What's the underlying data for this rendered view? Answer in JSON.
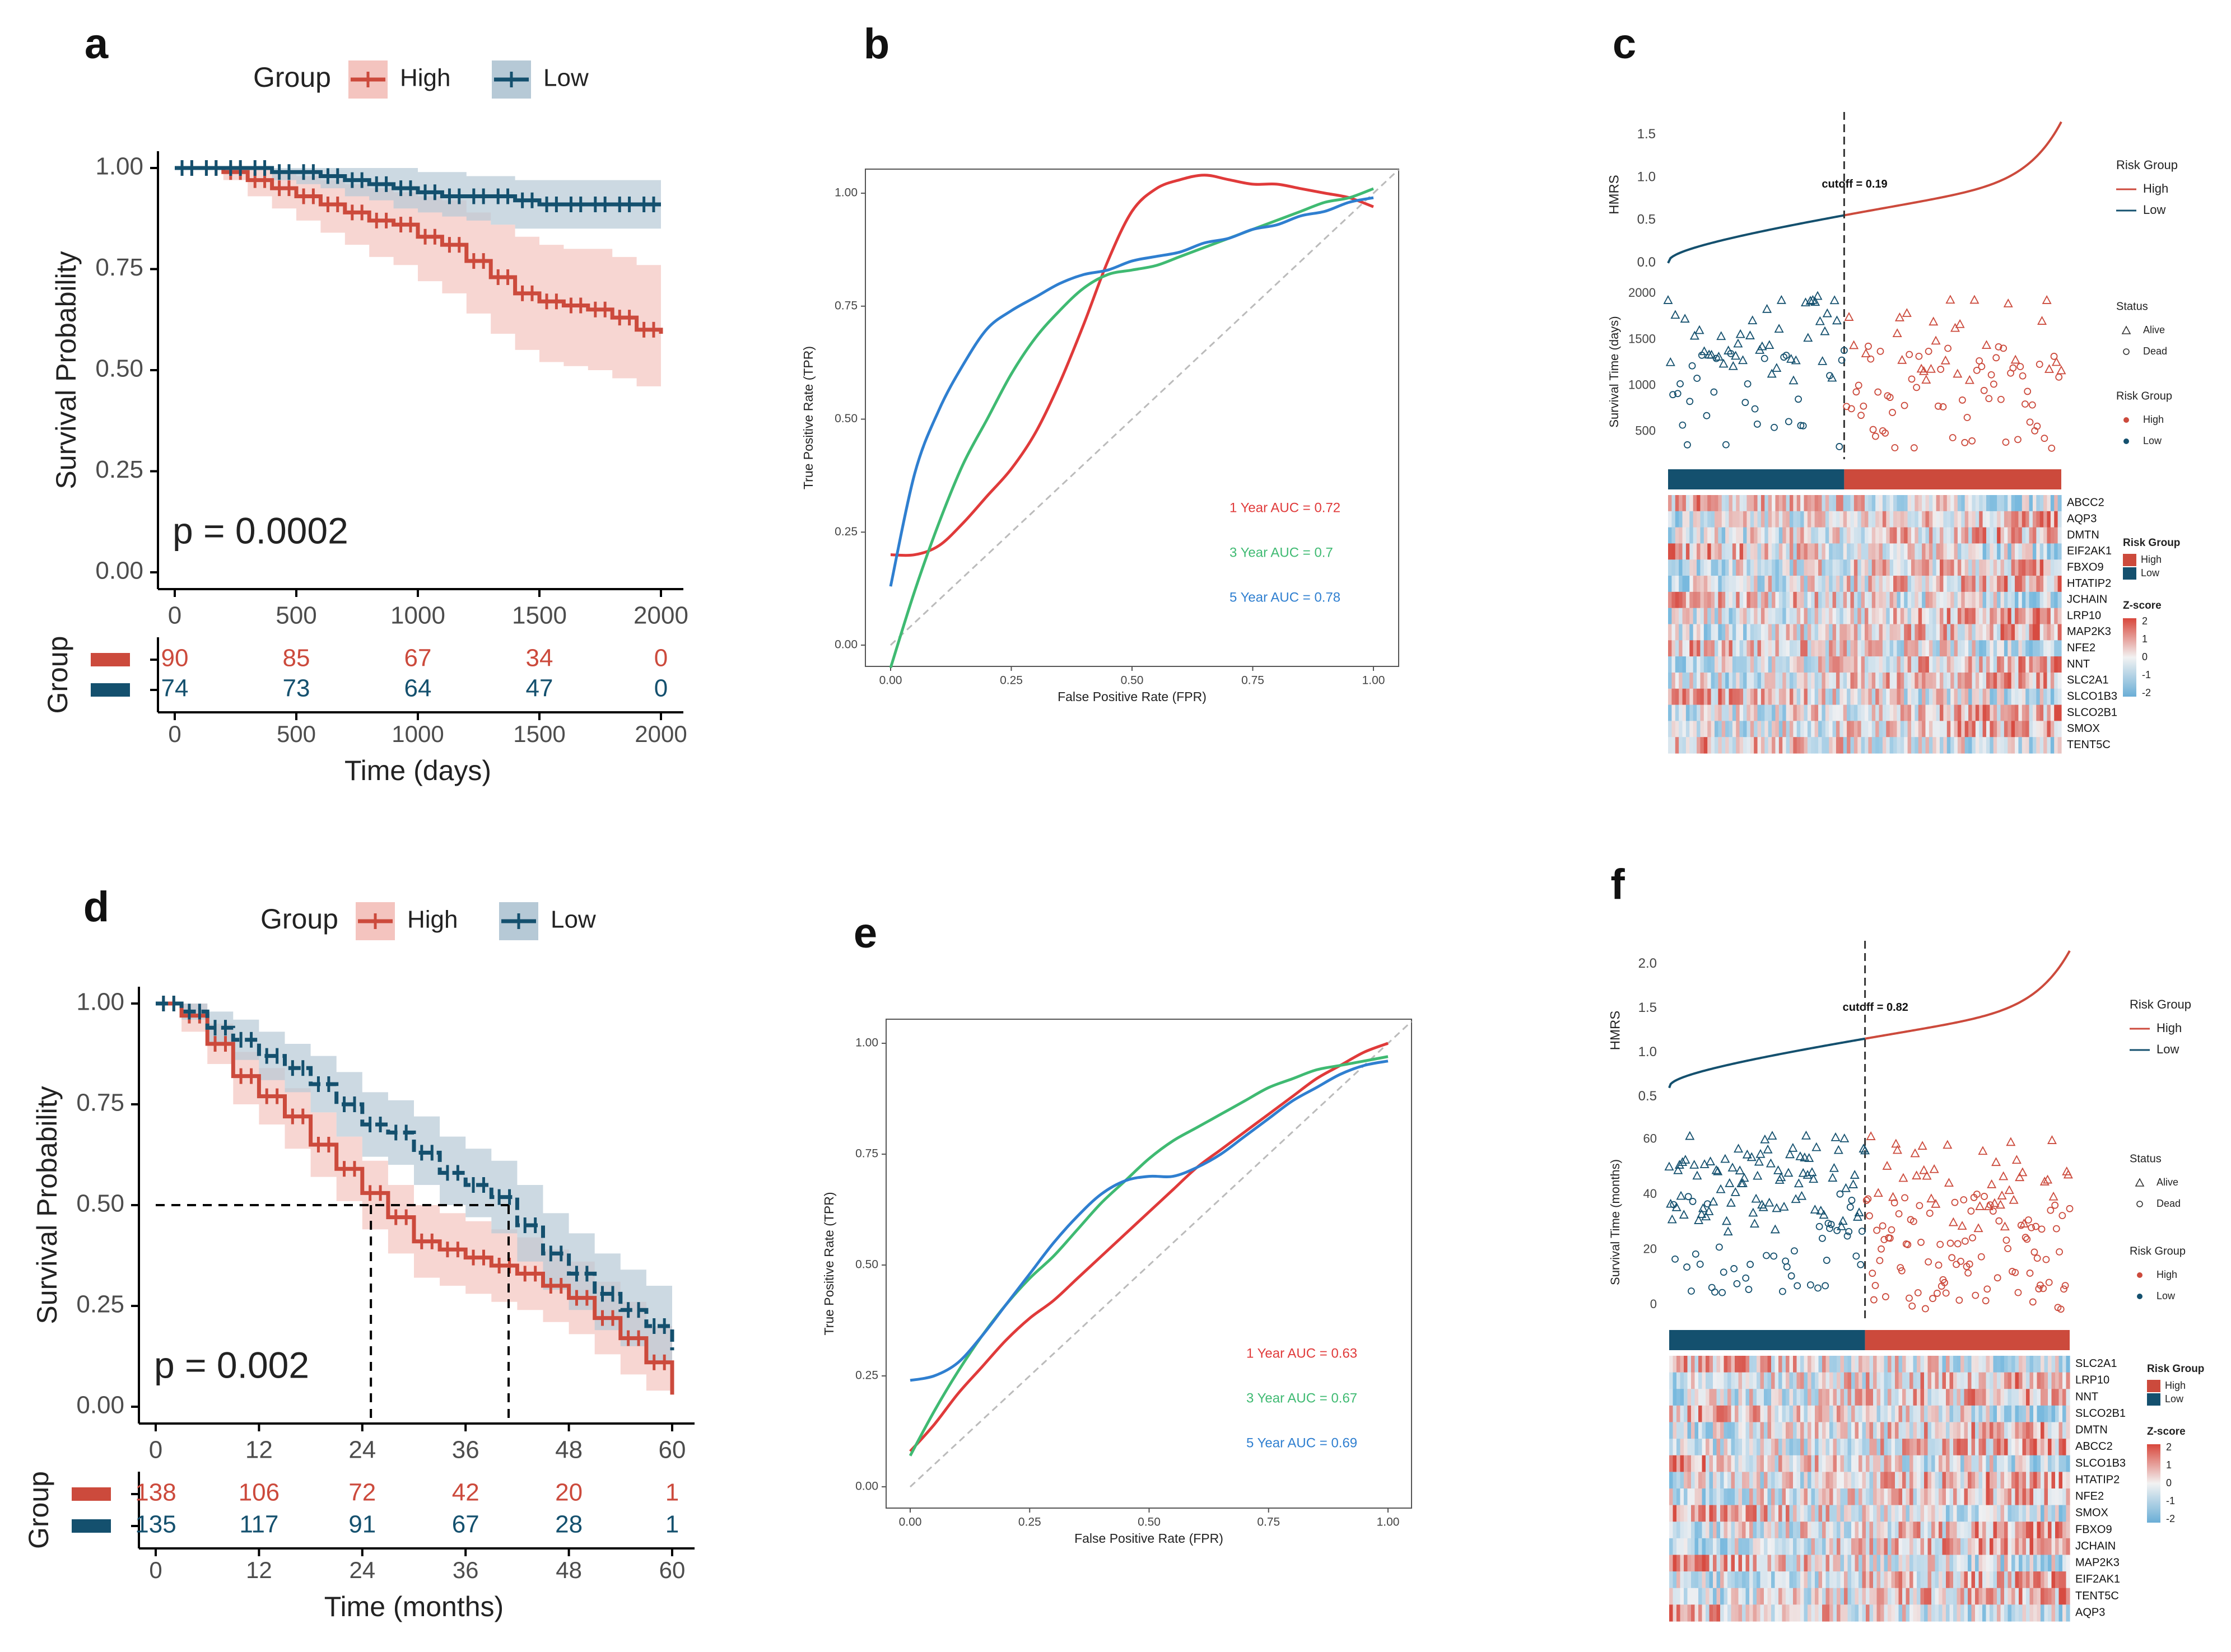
{
  "figure": {
    "panel_letters": [
      "a",
      "b",
      "c",
      "d",
      "e",
      "f"
    ]
  },
  "colors": {
    "high": "#cc4a3c",
    "low": "#14506e",
    "high_band": "#f4c4bf",
    "low_band": "#b6c9d6",
    "roc_1yr": "#e03a3a",
    "roc_3yr": "#3fba72",
    "roc_5yr": "#2f7fd0"
  },
  "chart_data": [
    {
      "panel": "a",
      "type": "line",
      "title": "",
      "legend": {
        "title": "Group",
        "entries": [
          "High",
          "Low"
        ],
        "position": "top"
      },
      "xlabel": "Time (days)",
      "ylabel": "Survival Probability",
      "xlim": [
        0,
        2000
      ],
      "ylim": [
        0,
        1
      ],
      "xticks": [
        "0",
        "500",
        "1000",
        "1500",
        "2000"
      ],
      "yticks": [
        "0.00",
        "0.25",
        "0.50",
        "0.75",
        "1.00"
      ],
      "p_value": "p = 0.0002",
      "series": [
        {
          "name": "High",
          "x": [
            0,
            100,
            200,
            300,
            400,
            500,
            600,
            700,
            800,
            900,
            1000,
            1100,
            1200,
            1300,
            1400,
            1500,
            1600,
            1700,
            1800,
            1900,
            2000
          ],
          "y": [
            1.0,
            1.0,
            0.99,
            0.97,
            0.95,
            0.93,
            0.91,
            0.89,
            0.87,
            0.86,
            0.83,
            0.81,
            0.77,
            0.73,
            0.69,
            0.67,
            0.66,
            0.65,
            0.63,
            0.6,
            0.59
          ],
          "lower": [
            1.0,
            1.0,
            0.97,
            0.93,
            0.9,
            0.87,
            0.84,
            0.81,
            0.78,
            0.76,
            0.72,
            0.69,
            0.64,
            0.59,
            0.55,
            0.52,
            0.51,
            0.5,
            0.48,
            0.46,
            0.46
          ],
          "upper": [
            1.0,
            1.0,
            1.0,
            1.0,
            0.99,
            0.98,
            0.97,
            0.96,
            0.95,
            0.94,
            0.93,
            0.92,
            0.89,
            0.86,
            0.83,
            0.81,
            0.8,
            0.8,
            0.78,
            0.76,
            0.75
          ]
        },
        {
          "name": "Low",
          "x": [
            0,
            100,
            200,
            300,
            400,
            500,
            600,
            700,
            800,
            900,
            1000,
            1100,
            1200,
            1300,
            1400,
            1500,
            1600,
            1700,
            1800,
            1900,
            2000
          ],
          "y": [
            1.0,
            1.0,
            1.0,
            1.0,
            0.99,
            0.99,
            0.98,
            0.97,
            0.96,
            0.95,
            0.94,
            0.93,
            0.93,
            0.93,
            0.92,
            0.91,
            0.91,
            0.91,
            0.91,
            0.91,
            0.91
          ],
          "lower": [
            1.0,
            1.0,
            1.0,
            1.0,
            0.97,
            0.96,
            0.95,
            0.93,
            0.92,
            0.9,
            0.89,
            0.88,
            0.87,
            0.86,
            0.85,
            0.85,
            0.85,
            0.85,
            0.85,
            0.85,
            0.85
          ],
          "upper": [
            1.0,
            1.0,
            1.0,
            1.0,
            1.0,
            1.0,
            1.0,
            1.0,
            1.0,
            1.0,
            0.99,
            0.99,
            0.98,
            0.98,
            0.97,
            0.97,
            0.97,
            0.97,
            0.97,
            0.97,
            0.97
          ]
        }
      ],
      "risk_table": {
        "ylabel": "Group",
        "xlabel": "Time (days)",
        "xticks": [
          "0",
          "500",
          "1000",
          "1500",
          "2000"
        ],
        "rows": [
          {
            "name": "High",
            "values": [
              "90",
              "85",
              "67",
              "34",
              "0"
            ]
          },
          {
            "name": "Low",
            "values": [
              "74",
              "73",
              "64",
              "47",
              "0"
            ]
          }
        ]
      }
    },
    {
      "panel": "b",
      "type": "line",
      "title": "",
      "xlabel": "False Positive Rate (FPR)",
      "ylabel": "True Positive Rate (TPR)",
      "xlim": [
        0,
        1
      ],
      "ylim": [
        0,
        1
      ],
      "xticks": [
        "0.00",
        "0.25",
        "0.50",
        "0.75",
        "1.00"
      ],
      "yticks": [
        "0.00",
        "0.25",
        "0.50",
        "0.75",
        "1.00"
      ],
      "series": [
        {
          "name": "1 Year AUC = 0.72",
          "x": [
            0,
            0.05,
            0.1,
            0.15,
            0.2,
            0.25,
            0.3,
            0.35,
            0.4,
            0.45,
            0.5,
            0.55,
            0.6,
            0.65,
            0.7,
            0.75,
            0.8,
            0.85,
            0.9,
            0.95,
            1.0
          ],
          "y": [
            0.2,
            0.2,
            0.22,
            0.27,
            0.33,
            0.39,
            0.47,
            0.58,
            0.71,
            0.85,
            0.96,
            1.01,
            1.03,
            1.04,
            1.03,
            1.02,
            1.02,
            1.01,
            1.0,
            0.99,
            0.97
          ]
        },
        {
          "name": "3 Year AUC = 0.7",
          "x": [
            0,
            0.05,
            0.1,
            0.15,
            0.2,
            0.25,
            0.3,
            0.35,
            0.4,
            0.45,
            0.5,
            0.55,
            0.6,
            0.65,
            0.7,
            0.75,
            0.8,
            0.85,
            0.9,
            0.95,
            1.0
          ],
          "y": [
            -0.05,
            0.12,
            0.27,
            0.4,
            0.5,
            0.6,
            0.68,
            0.74,
            0.79,
            0.82,
            0.83,
            0.84,
            0.86,
            0.88,
            0.9,
            0.92,
            0.94,
            0.96,
            0.98,
            0.99,
            1.01
          ]
        },
        {
          "name": "5 Year AUC = 0.78",
          "x": [
            0,
            0.05,
            0.1,
            0.15,
            0.2,
            0.25,
            0.3,
            0.35,
            0.4,
            0.45,
            0.5,
            0.55,
            0.6,
            0.65,
            0.7,
            0.75,
            0.8,
            0.85,
            0.9,
            0.95,
            1.0
          ],
          "y": [
            0.13,
            0.38,
            0.52,
            0.62,
            0.7,
            0.74,
            0.77,
            0.8,
            0.82,
            0.83,
            0.85,
            0.86,
            0.87,
            0.89,
            0.9,
            0.92,
            0.93,
            0.95,
            0.96,
            0.98,
            0.99
          ]
        }
      ],
      "auc_labels": [
        "1 Year AUC = 0.72",
        "3 Year AUC = 0.7",
        "5 Year AUC = 0.78"
      ]
    },
    {
      "panel": "c",
      "type": "scatter",
      "risk_score": {
        "ylabel": "HMRS",
        "yticks": [
          "0.0",
          "0.5",
          "1.0",
          "1.5"
        ],
        "ylim": [
          -0.1,
          1.7
        ],
        "cutoff_label": "cutoff = 0.19",
        "cutoff_frac": 0.45,
        "n": 164,
        "min": 0.0,
        "max": 1.65
      },
      "survival": {
        "ylabel": "Survival Time (days)",
        "yticks": [
          "500",
          "1000",
          "1500",
          "2000"
        ],
        "ylim": [
          200,
          2100
        ]
      },
      "legend_risk": {
        "title": "Risk Group",
        "entries": [
          "High",
          "Low"
        ]
      },
      "legend_status": {
        "title": "Status",
        "entries": [
          "Alive",
          "Dead"
        ]
      },
      "legend_risk_points": {
        "title": "Risk Group",
        "entries": [
          "High",
          "Low"
        ]
      },
      "heatmap": {
        "genes": [
          "ABCC2",
          "AQP3",
          "DMTN",
          "EIF2AK1",
          "FBXO9",
          "HTATIP2",
          "JCHAIN",
          "LRP10",
          "MAP2K3",
          "NFE2",
          "NNT",
          "SLC2A1",
          "SLCO1B3",
          "SLCO2B1",
          "SMOX",
          "TENT5C"
        ],
        "legend_group_title": "Risk Group",
        "legend_group_entries": [
          "High",
          "Low"
        ],
        "legend_z_title": "Z-score",
        "legend_z_ticks": [
          "2",
          "1",
          "0",
          "-1",
          "-2"
        ]
      }
    },
    {
      "panel": "d",
      "type": "line",
      "title": "",
      "legend": {
        "title": "Group",
        "entries": [
          "High",
          "Low"
        ],
        "position": "top"
      },
      "xlabel": "Time (months)",
      "ylabel": "Survival Probability",
      "xlim": [
        0,
        60
      ],
      "ylim": [
        0,
        1
      ],
      "xticks": [
        "0",
        "12",
        "24",
        "36",
        "48",
        "60"
      ],
      "yticks": [
        "0.00",
        "0.25",
        "0.50",
        "0.75",
        "1.00"
      ],
      "p_value": "p = 0.002",
      "median_survival": [
        25,
        41
      ],
      "series": [
        {
          "name": "High",
          "x": [
            0,
            3,
            6,
            9,
            12,
            15,
            18,
            21,
            24,
            27,
            30,
            33,
            36,
            39,
            42,
            45,
            48,
            51,
            54,
            57,
            60
          ],
          "y": [
            1.0,
            0.97,
            0.9,
            0.82,
            0.77,
            0.72,
            0.65,
            0.59,
            0.53,
            0.47,
            0.41,
            0.39,
            0.37,
            0.35,
            0.33,
            0.3,
            0.27,
            0.22,
            0.17,
            0.11,
            0.03
          ],
          "lower": [
            1.0,
            0.93,
            0.85,
            0.75,
            0.7,
            0.64,
            0.57,
            0.51,
            0.44,
            0.38,
            0.32,
            0.3,
            0.28,
            0.26,
            0.24,
            0.21,
            0.18,
            0.13,
            0.08,
            0.04,
            0.0
          ],
          "upper": [
            1.0,
            1.0,
            0.95,
            0.88,
            0.84,
            0.79,
            0.73,
            0.67,
            0.61,
            0.55,
            0.5,
            0.48,
            0.46,
            0.44,
            0.42,
            0.39,
            0.36,
            0.31,
            0.26,
            0.2,
            0.12
          ]
        },
        {
          "name": "Low",
          "x": [
            0,
            3,
            6,
            9,
            12,
            15,
            18,
            21,
            24,
            27,
            30,
            33,
            36,
            39,
            42,
            45,
            48,
            51,
            54,
            57,
            60
          ],
          "y": [
            1.0,
            0.98,
            0.94,
            0.91,
            0.87,
            0.84,
            0.8,
            0.75,
            0.7,
            0.68,
            0.63,
            0.58,
            0.55,
            0.52,
            0.45,
            0.38,
            0.33,
            0.28,
            0.24,
            0.2,
            0.14
          ],
          "lower": [
            1.0,
            0.96,
            0.9,
            0.86,
            0.81,
            0.78,
            0.73,
            0.67,
            0.62,
            0.6,
            0.55,
            0.5,
            0.47,
            0.43,
            0.36,
            0.29,
            0.24,
            0.19,
            0.15,
            0.11,
            0.05
          ],
          "upper": [
            1.0,
            1.0,
            0.98,
            0.96,
            0.93,
            0.9,
            0.87,
            0.83,
            0.78,
            0.76,
            0.72,
            0.67,
            0.64,
            0.61,
            0.55,
            0.48,
            0.43,
            0.38,
            0.34,
            0.3,
            0.26
          ]
        }
      ],
      "risk_table": {
        "ylabel": "Group",
        "xlabel": "Time (months)",
        "xticks": [
          "0",
          "12",
          "24",
          "36",
          "48",
          "60"
        ],
        "rows": [
          {
            "name": "High",
            "values": [
              "138",
              "106",
              "72",
              "42",
              "20",
              "1"
            ]
          },
          {
            "name": "Low",
            "values": [
              "135",
              "117",
              "91",
              "67",
              "28",
              "1"
            ]
          }
        ]
      }
    },
    {
      "panel": "e",
      "type": "line",
      "title": "",
      "xlabel": "False Positive Rate (FPR)",
      "ylabel": "True Positive Rate (TPR)",
      "xlim": [
        0,
        1
      ],
      "ylim": [
        0,
        1
      ],
      "xticks": [
        "0.00",
        "0.25",
        "0.50",
        "0.75",
        "1.00"
      ],
      "yticks": [
        "0.00",
        "0.25",
        "0.50",
        "0.75",
        "1.00"
      ],
      "series": [
        {
          "name": "1 Year AUC = 0.63",
          "x": [
            0,
            0.05,
            0.1,
            0.15,
            0.2,
            0.25,
            0.3,
            0.35,
            0.4,
            0.45,
            0.5,
            0.55,
            0.6,
            0.65,
            0.7,
            0.75,
            0.8,
            0.85,
            0.9,
            0.95,
            1.0
          ],
          "y": [
            0.08,
            0.14,
            0.21,
            0.27,
            0.33,
            0.38,
            0.42,
            0.47,
            0.52,
            0.57,
            0.62,
            0.67,
            0.72,
            0.76,
            0.8,
            0.84,
            0.88,
            0.92,
            0.95,
            0.98,
            1.0
          ]
        },
        {
          "name": "3 Year AUC = 0.67",
          "x": [
            0,
            0.05,
            0.1,
            0.15,
            0.2,
            0.25,
            0.3,
            0.35,
            0.4,
            0.45,
            0.5,
            0.55,
            0.6,
            0.65,
            0.7,
            0.75,
            0.8,
            0.85,
            0.9,
            0.95,
            1.0
          ],
          "y": [
            0.07,
            0.17,
            0.26,
            0.34,
            0.41,
            0.47,
            0.52,
            0.58,
            0.64,
            0.69,
            0.74,
            0.78,
            0.81,
            0.84,
            0.87,
            0.9,
            0.92,
            0.94,
            0.95,
            0.96,
            0.97
          ]
        },
        {
          "name": "5 Year AUC = 0.69",
          "x": [
            0,
            0.05,
            0.1,
            0.15,
            0.2,
            0.25,
            0.3,
            0.35,
            0.4,
            0.45,
            0.5,
            0.55,
            0.6,
            0.65,
            0.7,
            0.75,
            0.8,
            0.85,
            0.9,
            0.95,
            1.0
          ],
          "y": [
            0.24,
            0.25,
            0.28,
            0.34,
            0.41,
            0.48,
            0.55,
            0.61,
            0.66,
            0.69,
            0.7,
            0.7,
            0.72,
            0.75,
            0.79,
            0.83,
            0.87,
            0.9,
            0.93,
            0.95,
            0.96
          ]
        }
      ],
      "auc_labels": [
        "1 Year AUC = 0.63",
        "3 Year AUC = 0.67",
        "5 Year AUC = 0.69"
      ]
    },
    {
      "panel": "f",
      "type": "scatter",
      "risk_score": {
        "ylabel": "HMRS",
        "yticks": [
          "0.5",
          "1.0",
          "1.5",
          "2.0"
        ],
        "ylim": [
          0.3,
          2.2
        ],
        "cutoff_label": "cutoff = 0.82",
        "cutoff_frac": 0.49,
        "n": 273,
        "min": 0.6,
        "max": 2.15
      },
      "survival": {
        "ylabel": "Survival Time (months)",
        "yticks": [
          "0",
          "20",
          "40",
          "60"
        ],
        "ylim": [
          -5,
          65
        ]
      },
      "legend_risk": {
        "title": "Risk Group",
        "entries": [
          "High",
          "Low"
        ]
      },
      "legend_status": {
        "title": "Status",
        "entries": [
          "Alive",
          "Dead"
        ]
      },
      "legend_risk_points": {
        "title": "Risk Group",
        "entries": [
          "High",
          "Low"
        ]
      },
      "heatmap": {
        "genes": [
          "SLC2A1",
          "LRP10",
          "NNT",
          "SLCO2B1",
          "DMTN",
          "ABCC2",
          "SLCO1B3",
          "HTATIP2",
          "NFE2",
          "SMOX",
          "FBXO9",
          "JCHAIN",
          "MAP2K3",
          "EIF2AK1",
          "TENT5C",
          "AQP3"
        ],
        "legend_group_title": "Risk Group",
        "legend_group_entries": [
          "High",
          "Low"
        ],
        "legend_z_title": "Z-score",
        "legend_z_ticks": [
          "2",
          "1",
          "0",
          "-1",
          "-2"
        ]
      }
    }
  ]
}
